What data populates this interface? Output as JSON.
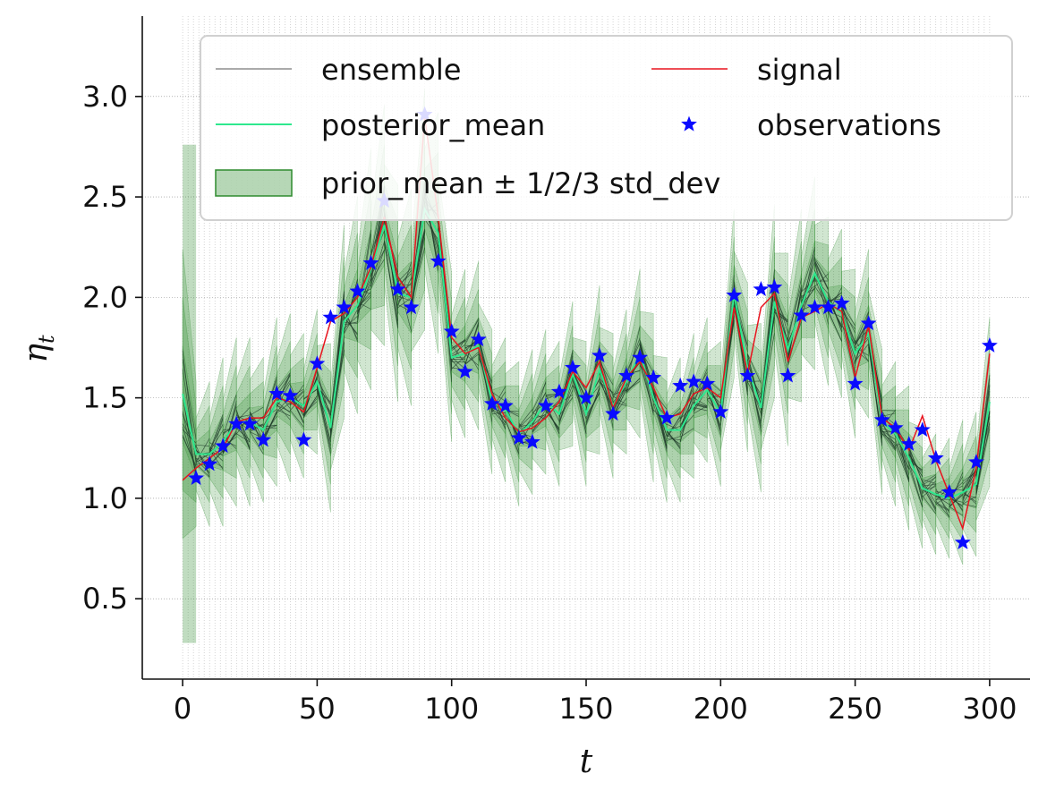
{
  "chart_data": {
    "type": "line",
    "xlabel": "t",
    "ylabel": "η",
    "ylabel_sub": "t",
    "xlim": [
      -15,
      315
    ],
    "ylim": [
      0.1,
      3.4
    ],
    "x_ticks": [
      0,
      50,
      100,
      150,
      200,
      250,
      300
    ],
    "x_tick_labels": [
      "0",
      "50",
      "100",
      "150",
      "200",
      "250",
      "300"
    ],
    "y_ticks": [
      0.5,
      1.0,
      1.5,
      2.0,
      2.5,
      3.0
    ],
    "y_tick_labels": [
      "0.5",
      "1.0",
      "1.5",
      "2.0",
      "2.5",
      "3.0"
    ],
    "grid": "dotted, y ticks and every time step (x)",
    "legend_position": "top",
    "legend": {
      "ensemble": "ensemble",
      "posterior_mean": "posterior_mean",
      "band": "prior_mean ± 1/2/3 std_dev",
      "signal": "signal",
      "observations": "observations"
    },
    "colors": {
      "ensemble": "#555555",
      "posterior_mean": "#2ee88e",
      "band": "#2e8b2e",
      "signal": "#e8141e",
      "observations": "#0a0aff",
      "grid": "#888888"
    },
    "obs_times": [
      0,
      5,
      10,
      15,
      20,
      25,
      30,
      35,
      40,
      45,
      50,
      55,
      60,
      65,
      70,
      75,
      80,
      85,
      90,
      95,
      100,
      105,
      110,
      115,
      120,
      125,
      130,
      135,
      140,
      145,
      150,
      155,
      160,
      165,
      170,
      175,
      180,
      185,
      190,
      195,
      200,
      205,
      210,
      215,
      220,
      225,
      230,
      235,
      240,
      245,
      250,
      255,
      260,
      265,
      270,
      275,
      280,
      285,
      290,
      295,
      300
    ],
    "signal": [
      1.09,
      1.15,
      1.2,
      1.25,
      1.38,
      1.4,
      1.4,
      1.5,
      1.48,
      1.43,
      1.65,
      1.88,
      1.92,
      2.0,
      2.15,
      2.4,
      2.1,
      2.0,
      2.9,
      2.4,
      1.8,
      1.72,
      1.75,
      1.52,
      1.4,
      1.33,
      1.35,
      1.4,
      1.48,
      1.63,
      1.55,
      1.68,
      1.45,
      1.6,
      1.68,
      1.55,
      1.4,
      1.42,
      1.52,
      1.55,
      1.5,
      1.95,
      1.62,
      1.95,
      2.02,
      1.68,
      1.9,
      1.93,
      1.97,
      1.93,
      1.6,
      1.86,
      1.4,
      1.35,
      1.24,
      1.41,
      1.19,
      1.02,
      0.85,
      1.15,
      1.72
    ],
    "posterior_mean": [
      1.52,
      1.22,
      1.22,
      1.28,
      1.38,
      1.38,
      1.34,
      1.48,
      1.5,
      1.46,
      1.58,
      1.35,
      1.88,
      1.96,
      2.14,
      2.36,
      2.02,
      2.0,
      2.44,
      2.32,
      1.7,
      1.72,
      1.76,
      1.48,
      1.44,
      1.32,
      1.38,
      1.48,
      1.42,
      1.62,
      1.42,
      1.64,
      1.46,
      1.58,
      1.72,
      1.5,
      1.34,
      1.34,
      1.46,
      1.54,
      1.42,
      2.02,
      1.65,
      1.45,
      1.98,
      1.74,
      1.96,
      2.12,
      1.98,
      1.92,
      1.72,
      1.82,
      1.38,
      1.32,
      1.2,
      1.05,
      1.02,
      1.0,
      1.03,
      1.07,
      1.48
    ],
    "band_1sd": [
      0.24,
      0.06,
      0.06,
      0.07,
      0.07,
      0.07,
      0.06,
      0.07,
      0.07,
      0.06,
      0.06,
      0.07,
      0.08,
      0.09,
      0.1,
      0.1,
      0.09,
      0.09,
      0.1,
      0.1,
      0.07,
      0.07,
      0.07,
      0.06,
      0.06,
      0.06,
      0.06,
      0.06,
      0.06,
      0.06,
      0.06,
      0.07,
      0.06,
      0.06,
      0.07,
      0.07,
      0.06,
      0.06,
      0.06,
      0.06,
      0.06,
      0.07,
      0.07,
      0.07,
      0.08,
      0.08,
      0.08,
      0.08,
      0.07,
      0.07,
      0.07,
      0.07,
      0.06,
      0.06,
      0.06,
      0.05,
      0.05,
      0.05,
      0.06,
      0.06,
      0.07
    ],
    "observations": [
      null,
      1.1,
      1.17,
      1.26,
      1.37,
      1.37,
      1.29,
      1.52,
      1.51,
      1.29,
      1.67,
      1.9,
      1.95,
      2.03,
      2.17,
      2.48,
      2.04,
      1.95,
      2.91,
      2.18,
      1.83,
      1.63,
      1.79,
      1.47,
      1.46,
      1.3,
      1.28,
      1.46,
      1.53,
      1.65,
      1.5,
      1.71,
      1.42,
      1.61,
      1.7,
      1.6,
      1.4,
      1.56,
      1.58,
      1.57,
      1.43,
      2.01,
      1.61,
      2.04,
      2.05,
      1.61,
      1.91,
      1.95,
      1.95,
      1.97,
      1.57,
      1.87,
      1.39,
      1.35,
      1.27,
      1.34,
      1.2,
      1.03,
      0.78,
      1.18,
      1.76
    ]
  }
}
